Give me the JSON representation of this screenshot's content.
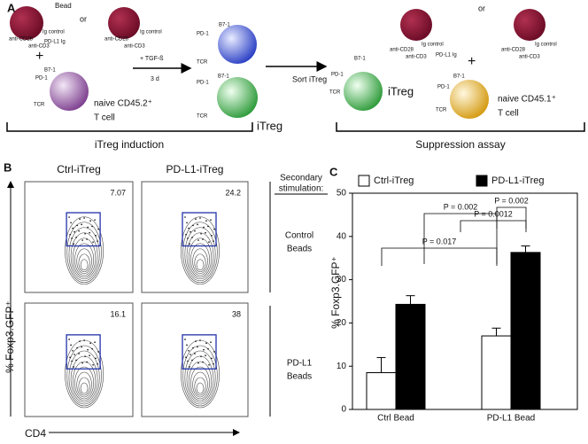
{
  "panel_a": {
    "label": "A",
    "texts": [
      "Bead",
      "or",
      "anti-CD28",
      "Ig control",
      "anti-CD3",
      "PD-L1 Ig",
      "+",
      "anti-CD28",
      "Ig control",
      "anti-CD3",
      "PD-1",
      "B7-1",
      "TCR",
      "naive CD45.2⁺",
      "T cell",
      "+ TGF-ß",
      "3 d",
      "PD-1",
      "B7-1",
      "TCR",
      "PD-1",
      "B7-1",
      "TCR",
      "iTreg",
      "Sort iTreg",
      "B7-1",
      "PD-1",
      "TCR",
      "iTreg",
      "or",
      "anti-CD28",
      "Ig control",
      "anti-CD3",
      "PD-L1 Ig",
      "+",
      "anti-CD28",
      "Ig control",
      "anti-CD3",
      "PD-1",
      "B7-1",
      "TCR",
      "naive CD45.1⁺",
      "T cell"
    ],
    "sections": [
      "iTreg induction",
      "Suppression assay"
    ]
  },
  "panel_b": {
    "label": "B",
    "columns": [
      "Ctrl-iTreg",
      "PD-L1-iTreg"
    ],
    "secondary": [
      "Secondary",
      "stimulation:"
    ],
    "rows": [
      [
        "Control",
        "Beads"
      ],
      [
        "PD-L1",
        "Beads"
      ]
    ],
    "percentages": [
      [
        "7.07",
        "24.2"
      ],
      [
        "16.1",
        "38"
      ]
    ],
    "y_label": "% Foxp3.GFP⁺",
    "x_label": "CD4"
  },
  "chart_data": {
    "type": "bar",
    "label": "C",
    "y_label": "% Foxp3.GFP⁺",
    "categories": [
      "Ctrl Bead",
      "PD-L1 Bead"
    ],
    "series": [
      {
        "name": "Ctrl-iTreg",
        "color": "#ffffff",
        "values": [
          8.5,
          17
        ],
        "errors": [
          3.5,
          1.8
        ]
      },
      {
        "name": "PD-L1-iTreg",
        "color": "#000000",
        "values": [
          24.3,
          36.3
        ],
        "errors": [
          2,
          1.5
        ]
      }
    ],
    "ylim": [
      0,
      50
    ],
    "yticks": [
      0,
      10,
      20,
      30,
      40,
      50
    ],
    "annotations": [
      "P = 0.002",
      "P = 0.0012",
      "P = 0.017",
      "P = 0.002"
    ]
  }
}
